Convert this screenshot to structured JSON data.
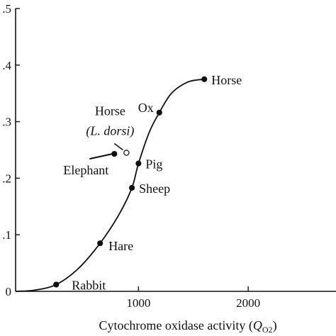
{
  "chart_data": {
    "type": "scatter",
    "title": "",
    "xlabel": "Cytochrome oxidase activity",
    "xlabel_symbol": "Q",
    "xlabel_subscript": "O2",
    "ylabel": "",
    "xlim": [
      -120,
      2800
    ],
    "ylim": [
      0,
      0.5
    ],
    "x_ticks": [
      {
        "value": 1000,
        "label": "1000"
      },
      {
        "value": 2000,
        "label": "2000"
      }
    ],
    "y_ticks": [
      {
        "value": 0,
        "label": "0"
      },
      {
        "value": 0.1,
        "label": ".1"
      },
      {
        "value": 0.2,
        "label": ".2"
      },
      {
        "value": 0.3,
        "label": ".3"
      },
      {
        "value": 0.4,
        "label": ".4"
      },
      {
        "value": 0.5,
        "label": ".5"
      }
    ],
    "grid": false,
    "legend": "none",
    "points": [
      {
        "name": "Rabbit",
        "x": 250,
        "y": 0.012,
        "filled": true
      },
      {
        "name": "Hare",
        "x": 650,
        "y": 0.085,
        "filled": true
      },
      {
        "name": "Sheep",
        "x": 940,
        "y": 0.183,
        "filled": true
      },
      {
        "name": "Pig",
        "x": 1000,
        "y": 0.226,
        "filled": true
      },
      {
        "name": "Ox",
        "x": 1190,
        "y": 0.316,
        "filled": true
      },
      {
        "name": "Horse",
        "x": 1600,
        "y": 0.375,
        "filled": true
      },
      {
        "name": "Elephant",
        "x": 780,
        "y": 0.243,
        "filled": true
      },
      {
        "name": "Horse",
        "name_line2": "(L. dorsi)",
        "x": 890,
        "y": 0.245,
        "filled": false
      }
    ],
    "curve": [
      {
        "x": -120,
        "y": 0.0
      },
      {
        "x": 50,
        "y": 0.002
      },
      {
        "x": 250,
        "y": 0.012
      },
      {
        "x": 450,
        "y": 0.04
      },
      {
        "x": 650,
        "y": 0.085
      },
      {
        "x": 820,
        "y": 0.135
      },
      {
        "x": 940,
        "y": 0.183
      },
      {
        "x": 1000,
        "y": 0.226
      },
      {
        "x": 1100,
        "y": 0.282
      },
      {
        "x": 1190,
        "y": 0.316
      },
      {
        "x": 1300,
        "y": 0.35
      },
      {
        "x": 1450,
        "y": 0.37
      },
      {
        "x": 1600,
        "y": 0.375
      }
    ]
  }
}
